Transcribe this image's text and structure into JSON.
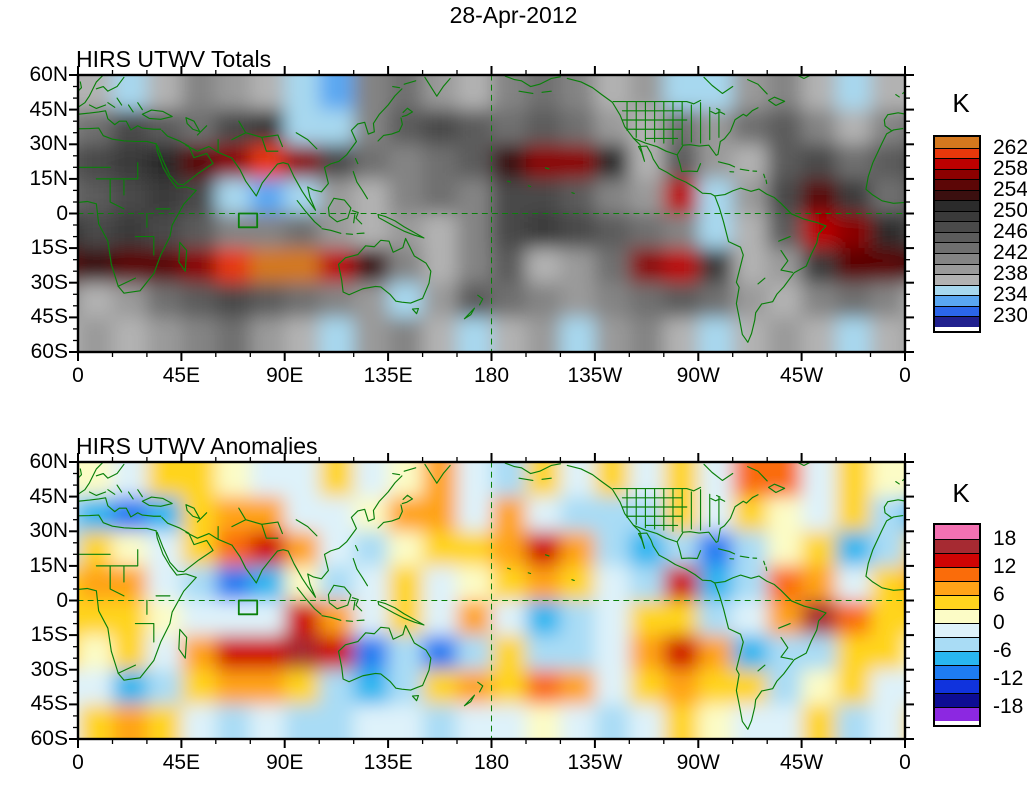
{
  "title": "28-Apr-2012",
  "panels": [
    {
      "title": "HIRS UTWV Totals",
      "colorbar": {
        "unit": "K",
        "tick_labels": [
          "262",
          "258",
          "254",
          "250",
          "246",
          "242",
          "238",
          "234",
          "230"
        ]
      }
    },
    {
      "title": "HIRS UTWV Anomalies",
      "colorbar": {
        "unit": "K",
        "tick_labels": [
          "18",
          "12",
          "6",
          "0",
          "-6",
          "-12",
          "-18"
        ]
      }
    }
  ],
  "axes": {
    "x_tick_labels": [
      "0",
      "45E",
      "90E",
      "135E",
      "180",
      "135W",
      "90W",
      "45W",
      "0"
    ],
    "x_tick_lons": [
      0,
      45,
      90,
      135,
      180,
      225,
      270,
      315,
      360
    ],
    "y_tick_labels": [
      "60N",
      "45N",
      "30N",
      "15N",
      "0",
      "15S",
      "30S",
      "45S",
      "60S"
    ],
    "y_tick_lats": [
      60,
      45,
      30,
      15,
      0,
      -15,
      -30,
      -45,
      -60
    ]
  },
  "chart_data": [
    {
      "type": "heatmap",
      "title": "HIRS UTWV Totals",
      "date": "28-Apr-2012",
      "units": "K",
      "x_axis": {
        "range": [
          0,
          360
        ],
        "tick_labels": [
          "0",
          "45E",
          "90E",
          "135E",
          "180",
          "135W",
          "90W",
          "45W",
          "0"
        ],
        "tick_lons": [
          0,
          45,
          90,
          135,
          180,
          225,
          270,
          315,
          360
        ],
        "minor_tick_step": 15
      },
      "y_axis": {
        "range": [
          -60,
          60
        ],
        "tick_labels": [
          "60N",
          "45N",
          "30N",
          "15N",
          "0",
          "15S",
          "30S",
          "45S",
          "60S"
        ],
        "tick_lats": [
          60,
          45,
          30,
          15,
          0,
          -15,
          -30,
          -45,
          -60
        ],
        "minor_tick_step": 5
      },
      "colorbar": {
        "unit": "K",
        "levels": [
          228,
          230,
          232,
          234,
          236,
          238,
          240,
          242,
          244,
          246,
          248,
          250,
          252,
          254,
          256,
          258,
          260,
          262,
          264
        ],
        "colors": [
          "#20208e",
          "#2b66ea",
          "#5aa7f2",
          "#a7d8ef",
          "#b2b2b2",
          "#9a9a9a",
          "#848484",
          "#6f6f6f",
          "#5c5c5c",
          "#4a4a4a",
          "#3a3a3a",
          "#2b2b2b",
          "#3b0f0f",
          "#5c0606",
          "#8c0000",
          "#bc0000",
          "#e8380b",
          "#d4781e"
        ],
        "tick_labels": [
          "262",
          "258",
          "254",
          "250",
          "246",
          "242",
          "238",
          "234",
          "230"
        ],
        "tick_values": [
          262,
          258,
          254,
          250,
          246,
          242,
          238,
          234,
          230
        ]
      },
      "grid_def": {
        "lon_center_start": 7.5,
        "lon_step": 15,
        "n_lon": 24,
        "lat_center_start": 52.5,
        "lat_step": -15,
        "n_lat": 8
      },
      "grid_estimated_K": [
        [
          236,
          234,
          236,
          240,
          238,
          236,
          234,
          233,
          240,
          242,
          238,
          236,
          240,
          242,
          240,
          236,
          238,
          235,
          234,
          238,
          240,
          236,
          234,
          236
        ],
        [
          242,
          246,
          244,
          242,
          246,
          248,
          234,
          235,
          240,
          244,
          246,
          244,
          242,
          244,
          242,
          238,
          236,
          242,
          238,
          242,
          244,
          240,
          236,
          240
        ],
        [
          246,
          248,
          250,
          254,
          256,
          260,
          256,
          246,
          242,
          240,
          242,
          244,
          252,
          256,
          256,
          250,
          236,
          244,
          238,
          236,
          244,
          246,
          242,
          244
        ],
        [
          244,
          246,
          248,
          246,
          234,
          232,
          234,
          238,
          236,
          240,
          242,
          240,
          246,
          246,
          244,
          240,
          238,
          258,
          234,
          238,
          246,
          254,
          248,
          242
        ],
        [
          246,
          248,
          246,
          244,
          240,
          240,
          242,
          238,
          236,
          238,
          236,
          240,
          246,
          248,
          246,
          244,
          242,
          240,
          234,
          236,
          244,
          258,
          256,
          250
        ],
        [
          252,
          254,
          254,
          256,
          260,
          262,
          262,
          258,
          252,
          240,
          236,
          240,
          244,
          236,
          238,
          242,
          256,
          258,
          248,
          236,
          238,
          248,
          254,
          254
        ],
        [
          236,
          238,
          242,
          244,
          246,
          244,
          242,
          240,
          238,
          234,
          238,
          244,
          242,
          240,
          238,
          240,
          242,
          244,
          242,
          238,
          236,
          240,
          242,
          240
        ],
        [
          238,
          236,
          238,
          240,
          242,
          238,
          236,
          234,
          238,
          240,
          236,
          234,
          236,
          238,
          234,
          238,
          240,
          236,
          234,
          236,
          238,
          236,
          234,
          236
        ]
      ],
      "reference_box": {
        "lon_min": 70,
        "lon_max": 78,
        "lat_min": -6,
        "lat_max": 0
      },
      "reference_lines": {
        "equator_dashed": true,
        "meridian_180_dashed": true
      },
      "coastline_color": "#0a800a"
    },
    {
      "type": "heatmap",
      "title": "HIRS UTWV Anomalies",
      "date": "28-Apr-2012",
      "units": "K",
      "x_axis": {
        "range": [
          0,
          360
        ],
        "tick_labels": [
          "0",
          "45E",
          "90E",
          "135E",
          "180",
          "135W",
          "90W",
          "45W",
          "0"
        ],
        "tick_lons": [
          0,
          45,
          90,
          135,
          180,
          225,
          270,
          315,
          360
        ],
        "minor_tick_step": 15
      },
      "y_axis": {
        "range": [
          -60,
          60
        ],
        "tick_labels": [
          "60N",
          "45N",
          "30N",
          "15N",
          "0",
          "15S",
          "30S",
          "45S",
          "60S"
        ],
        "tick_lats": [
          60,
          45,
          30,
          15,
          0,
          -15,
          -30,
          -45,
          -60
        ],
        "minor_tick_step": 5
      },
      "colorbar": {
        "unit": "K",
        "levels": [
          -21,
          -18,
          -15,
          -12,
          -9,
          -6,
          -3,
          0,
          3,
          6,
          9,
          12,
          15,
          18,
          21
        ],
        "colors": [
          "#8c28e1",
          "#0d0d94",
          "#1033dd",
          "#1e7cf2",
          "#29b6f0",
          "#a9dcf5",
          "#def2fa",
          "#fcfcc6",
          "#ffd41e",
          "#ffa318",
          "#fa6c0a",
          "#cf0404",
          "#a62a32",
          "#f371b2"
        ],
        "tick_labels": [
          "18",
          "12",
          "6",
          "0",
          "-6",
          "-12",
          "-18"
        ],
        "tick_values": [
          18,
          12,
          6,
          0,
          -6,
          -12,
          -18
        ]
      },
      "grid_def": {
        "lon_center_start": 7.5,
        "lon_step": 15,
        "n_lon": 24,
        "lat_center_start": 52.5,
        "lat_step": -15,
        "n_lat": 8
      },
      "grid_estimated_K": [
        [
          2,
          -2,
          3,
          5,
          2,
          -3,
          -2,
          3,
          -3,
          2,
          6,
          -2,
          -4,
          3,
          -2,
          4,
          -3,
          3,
          -2,
          9,
          10,
          -3,
          5,
          2
        ],
        [
          -8,
          -10,
          -8,
          4,
          6,
          6,
          -2,
          -3,
          2,
          6,
          7,
          -2,
          8,
          -2,
          -5,
          -6,
          -4,
          3,
          -2,
          3,
          2,
          -3,
          3,
          -4
        ],
        [
          3,
          2,
          -2,
          3,
          10,
          12,
          8,
          -2,
          -4,
          2,
          4,
          3,
          8,
          12,
          6,
          -4,
          -8,
          -4,
          -10,
          -6,
          2,
          3,
          -8,
          -6
        ],
        [
          8,
          6,
          -2,
          -4,
          -10,
          -8,
          2,
          -4,
          -2,
          3,
          -3,
          2,
          3,
          6,
          4,
          -2,
          -4,
          13,
          -8,
          -4,
          9,
          6,
          -2,
          3
        ],
        [
          3,
          5,
          2,
          -3,
          -2,
          -2,
          12,
          6,
          -3,
          3,
          -2,
          8,
          -3,
          -8,
          -6,
          -2,
          3,
          4,
          -4,
          -2,
          6,
          17,
          10,
          5
        ],
        [
          2,
          5,
          -2,
          8,
          12,
          14,
          17,
          14,
          -12,
          -6,
          -10,
          -6,
          3,
          -4,
          -6,
          -3,
          8,
          12,
          6,
          -8,
          -6,
          -4,
          3,
          5
        ],
        [
          -3,
          -8,
          -4,
          3,
          6,
          6,
          3,
          -4,
          -8,
          -4,
          3,
          8,
          3,
          10,
          6,
          -2,
          3,
          6,
          4,
          3,
          -4,
          2,
          4,
          -2
        ],
        [
          5,
          6,
          3,
          -2,
          -4,
          -2,
          -4,
          -6,
          -3,
          -2,
          -4,
          -2,
          -3,
          2,
          -2,
          -4,
          -2,
          3,
          2,
          -3,
          -2,
          3,
          -4,
          -2
        ]
      ],
      "reference_box": {
        "lon_min": 70,
        "lon_max": 78,
        "lat_min": -6,
        "lat_max": 0
      },
      "reference_lines": {
        "equator_dashed": true,
        "meridian_180_dashed": true
      },
      "coastline_color": "#0a800a"
    }
  ]
}
